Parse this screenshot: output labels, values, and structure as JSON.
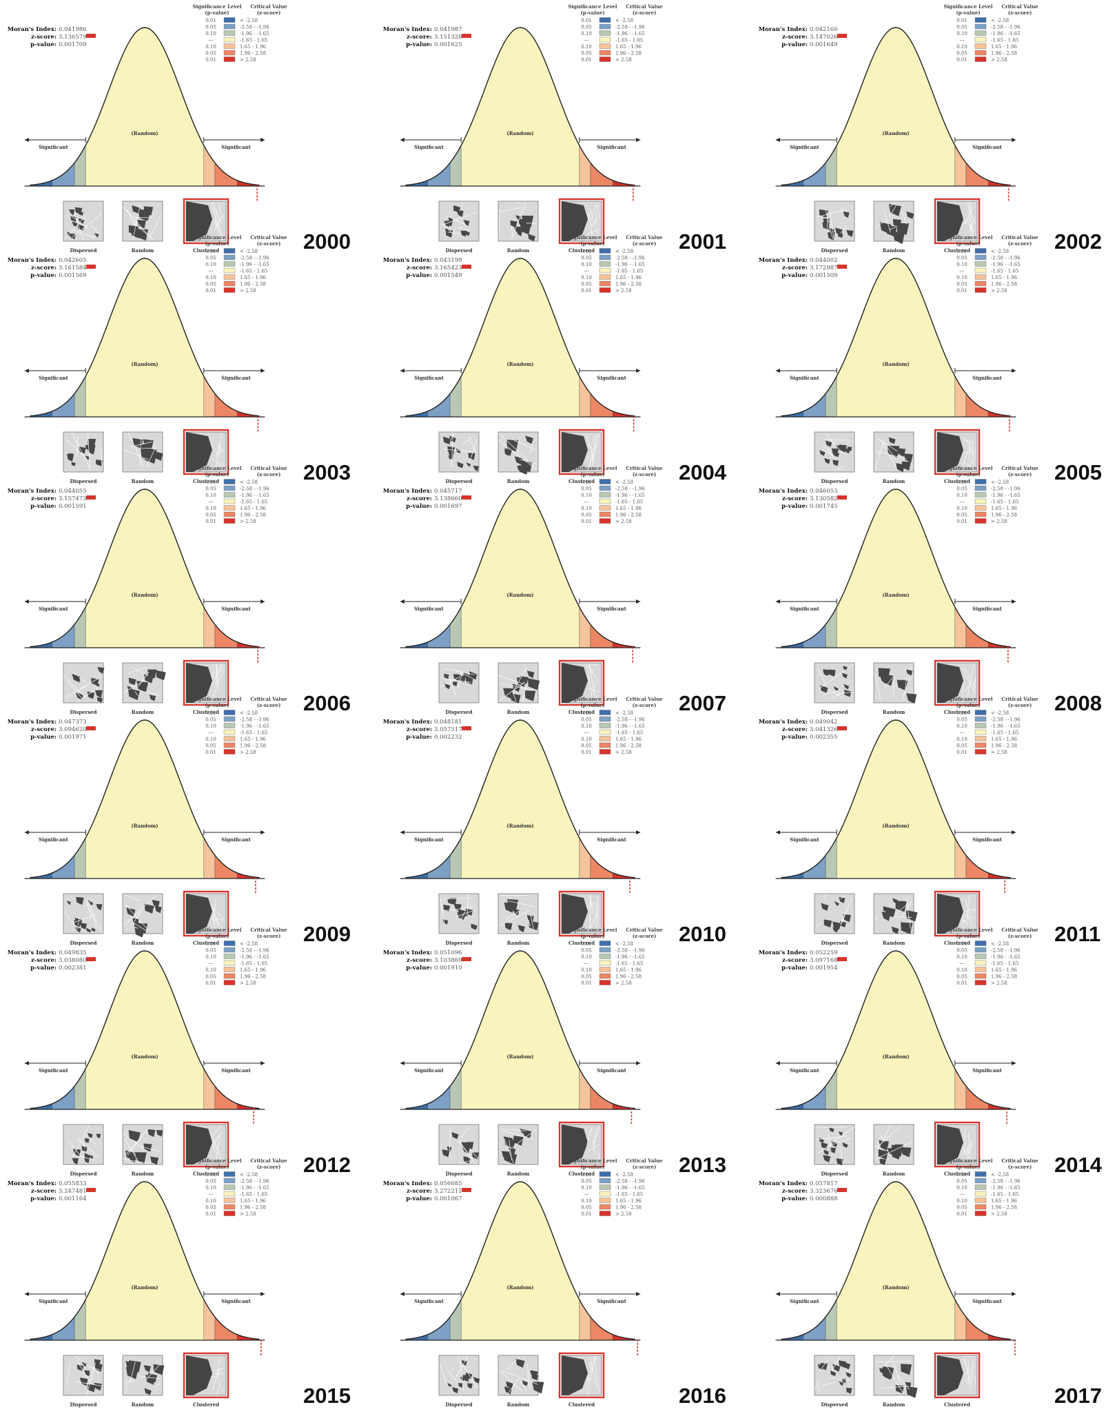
{
  "labels": {
    "moran": "Moran's Index:",
    "zscore": "z-score:",
    "pvalue": "p-value:",
    "sig_level": "Significance Level",
    "sig_level_sub": "(p-value)",
    "crit_value": "Critical Value",
    "crit_value_sub": "(z-score)",
    "significant": "Significant",
    "random_curve": "(Random)",
    "dispersed": "Dispersed",
    "random": "Random",
    "clustered": "Clustered"
  },
  "legend": [
    {
      "p": "0.01",
      "z": "< -2.58",
      "color": "#3f6fa8"
    },
    {
      "p": "0.05",
      "z": "-2.58 - -1.96",
      "color": "#7da0c4"
    },
    {
      "p": "0.10",
      "z": "-1.96 - -1.65",
      "color": "#b8c8b4"
    },
    {
      "p": "---",
      "z": "-1.65 - 1.65",
      "color": "#f9f4bd"
    },
    {
      "p": "0.10",
      "z": "1.65 - 1.96",
      "color": "#f6c39a"
    },
    {
      "p": "0.05",
      "z": "1.96 - 2.58",
      "color": "#ec8766"
    },
    {
      "p": "0.01",
      "z": "> 2.58",
      "color": "#d8342c"
    }
  ],
  "chart_data": [
    {
      "type": "normal-curve",
      "year": "2000",
      "moran_index": "0.041986",
      "z_score": "3.136579",
      "p_value": "0.001709"
    },
    {
      "type": "normal-curve",
      "year": "2001",
      "moran_index": "0.041987",
      "z_score": "3.151328",
      "p_value": "0.001625"
    },
    {
      "type": "normal-curve",
      "year": "2002",
      "moran_index": "0.042160",
      "z_score": "3.147026",
      "p_value": "0.001649"
    },
    {
      "type": "normal-curve",
      "year": "2003",
      "moran_index": "0.042605",
      "z_score": "3.161584",
      "p_value": "0.001569"
    },
    {
      "type": "normal-curve",
      "year": "2004",
      "moran_index": "0.043199",
      "z_score": "3.165423",
      "p_value": "0.001549"
    },
    {
      "type": "normal-curve",
      "year": "2005",
      "moran_index": "0.044002",
      "z_score": "3.172987",
      "p_value": "0.001509"
    },
    {
      "type": "normal-curve",
      "year": "2006",
      "moran_index": "0.044055",
      "z_score": "3.157473",
      "p_value": "0.001591"
    },
    {
      "type": "normal-curve",
      "year": "2007",
      "moran_index": "0.045717",
      "z_score": "3.138660",
      "p_value": "0.001697"
    },
    {
      "type": "normal-curve",
      "year": "2008",
      "moran_index": "0.046053",
      "z_score": "3.130582",
      "p_value": "0.001745"
    },
    {
      "type": "normal-curve",
      "year": "2009",
      "moran_index": "0.047373",
      "z_score": "3.094620",
      "p_value": "0.001971"
    },
    {
      "type": "normal-curve",
      "year": "2010",
      "moran_index": "0.048181",
      "z_score": "3.057517",
      "p_value": "0.002232"
    },
    {
      "type": "normal-curve",
      "year": "2011",
      "moran_index": "0.049042",
      "z_score": "3.041326",
      "p_value": "0.002355"
    },
    {
      "type": "normal-curve",
      "year": "2012",
      "moran_index": "0.049835",
      "z_score": "3.038080",
      "p_value": "0.002381"
    },
    {
      "type": "normal-curve",
      "year": "2013",
      "moran_index": "0.051096",
      "z_score": "3.103869",
      "p_value": "0.001910"
    },
    {
      "type": "normal-curve",
      "year": "2014",
      "moran_index": "0.052259",
      "z_score": "3.097168",
      "p_value": "0.001954"
    },
    {
      "type": "normal-curve",
      "year": "2015",
      "moran_index": "0.055833",
      "z_score": "3.247481",
      "p_value": "0.001164"
    },
    {
      "type": "normal-curve",
      "year": "2016",
      "moran_index": "0.056685",
      "z_score": "3.272211",
      "p_value": "0.001067"
    },
    {
      "type": "normal-curve",
      "year": "2017",
      "moran_index": "0.057817",
      "z_score": "3.323676",
      "p_value": "0.000888"
    }
  ]
}
